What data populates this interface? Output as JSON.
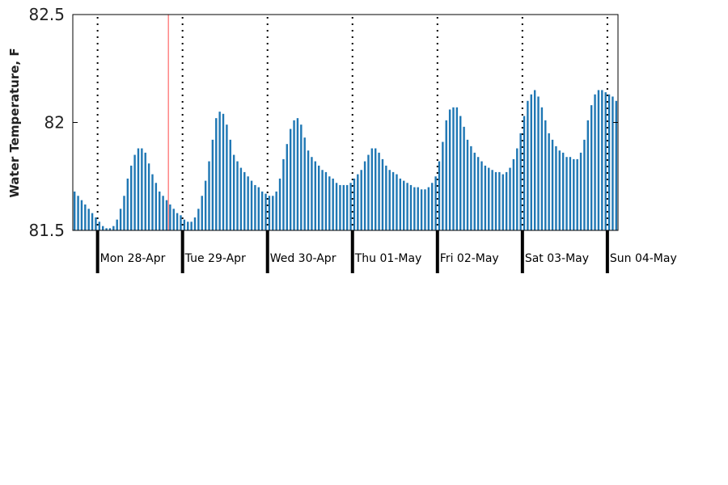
{
  "chart_data": {
    "type": "bar",
    "title": "",
    "xlabel": "",
    "ylabel": "Water Temperature, F",
    "ylim": [
      81.5,
      82.5
    ],
    "yticks": [
      81.5,
      82,
      82.5
    ],
    "ytick_labels": [
      "81.5",
      "82",
      "82.5"
    ],
    "bar_color": "#1f77b4",
    "current_time_marker_color": "#ff6666",
    "current_time_marker": "2024-04-28 20:00",
    "interval": "hourly",
    "start": "2024-04-27 17:00",
    "grid": "dotted vertical line at each midnight",
    "days": [
      "Mon 28-Apr",
      "Tue 29-Apr",
      "Wed 30-Apr",
      "Thu 01-May",
      "Fri 02-May",
      "Sat 03-May",
      "Sun 04-May"
    ],
    "values": [
      81.68,
      81.66,
      81.64,
      81.62,
      81.6,
      81.58,
      81.56,
      81.54,
      81.52,
      81.51,
      81.51,
      81.52,
      81.55,
      81.6,
      81.66,
      81.74,
      81.8,
      81.85,
      81.88,
      81.88,
      81.86,
      81.81,
      81.76,
      81.72,
      81.68,
      81.66,
      81.64,
      81.62,
      81.6,
      81.58,
      81.57,
      81.55,
      81.54,
      81.54,
      81.56,
      81.6,
      81.66,
      81.73,
      81.82,
      81.92,
      82.02,
      82.05,
      82.04,
      81.99,
      81.92,
      81.85,
      81.82,
      81.79,
      81.77,
      81.75,
      81.73,
      81.71,
      81.7,
      81.68,
      81.67,
      81.66,
      81.66,
      81.68,
      81.74,
      81.83,
      81.9,
      81.97,
      82.01,
      82.02,
      81.99,
      81.93,
      81.87,
      81.84,
      81.82,
      81.8,
      81.78,
      81.77,
      81.75,
      81.74,
      81.72,
      81.71,
      81.71,
      81.71,
      81.72,
      81.74,
      81.76,
      81.78,
      81.82,
      81.85,
      81.88,
      81.88,
      81.86,
      81.83,
      81.8,
      81.78,
      81.77,
      81.76,
      81.74,
      81.73,
      81.72,
      81.71,
      81.7,
      81.7,
      81.69,
      81.69,
      81.7,
      81.72,
      81.75,
      81.82,
      81.91,
      82.01,
      82.06,
      82.07,
      82.07,
      82.03,
      81.98,
      81.92,
      81.89,
      81.86,
      81.84,
      81.82,
      81.8,
      81.79,
      81.78,
      81.77,
      81.77,
      81.76,
      81.77,
      81.79,
      81.83,
      81.88,
      81.95,
      82.03,
      82.1,
      82.13,
      82.15,
      82.12,
      82.07,
      82.01,
      81.95,
      81.92,
      81.89,
      81.87,
      81.86,
      81.84,
      81.84,
      81.83,
      81.83,
      81.86,
      81.92,
      82.01,
      82.08,
      82.13,
      82.15,
      82.15,
      82.14,
      82.13,
      82.12,
      82.1
    ]
  }
}
